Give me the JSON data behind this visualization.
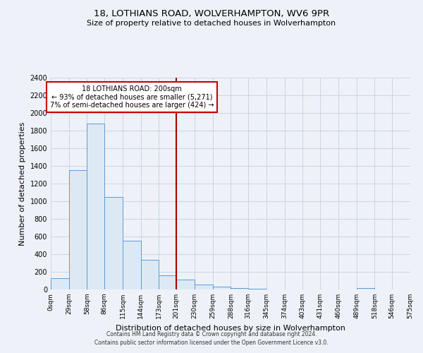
{
  "title": "18, LOTHIANS ROAD, WOLVERHAMPTON, WV6 9PR",
  "subtitle": "Size of property relative to detached houses in Wolverhampton",
  "xlabel": "Distribution of detached houses by size in Wolverhampton",
  "ylabel": "Number of detached properties",
  "bin_edges": [
    0,
    29,
    58,
    86,
    115,
    144,
    173,
    201,
    230,
    259,
    288,
    316,
    345,
    374,
    403,
    431,
    460,
    489,
    518,
    546,
    575
  ],
  "bar_heights": [
    125,
    1350,
    1880,
    1050,
    550,
    340,
    160,
    110,
    60,
    30,
    15,
    5,
    0,
    0,
    0,
    0,
    0,
    15,
    0,
    0
  ],
  "bar_color": "#dce9f5",
  "bar_edge_color": "#5b9bd5",
  "vline_x": 201,
  "vline_color": "#aa0000",
  "annotation_title": "18 LOTHIANS ROAD: 200sqm",
  "annotation_line1": "← 93% of detached houses are smaller (5,271)",
  "annotation_line2": "7% of semi-detached houses are larger (424) →",
  "annotation_box_color": "#ffffff",
  "annotation_border_color": "#cc0000",
  "ylim": [
    0,
    2400
  ],
  "yticks": [
    0,
    200,
    400,
    600,
    800,
    1000,
    1200,
    1400,
    1600,
    1800,
    2000,
    2200,
    2400
  ],
  "tick_labels": [
    "0sqm",
    "29sqm",
    "58sqm",
    "86sqm",
    "115sqm",
    "144sqm",
    "173sqm",
    "201sqm",
    "230sqm",
    "259sqm",
    "288sqm",
    "316sqm",
    "345sqm",
    "374sqm",
    "403sqm",
    "431sqm",
    "460sqm",
    "489sqm",
    "518sqm",
    "546sqm",
    "575sqm"
  ],
  "footer1": "Contains HM Land Registry data © Crown copyright and database right 2024.",
  "footer2": "Contains public sector information licensed under the Open Government Licence v3.0.",
  "bg_color": "#eef2f8",
  "plot_bg_color": "#eef2f8",
  "grid_color": "#c5cfe0"
}
